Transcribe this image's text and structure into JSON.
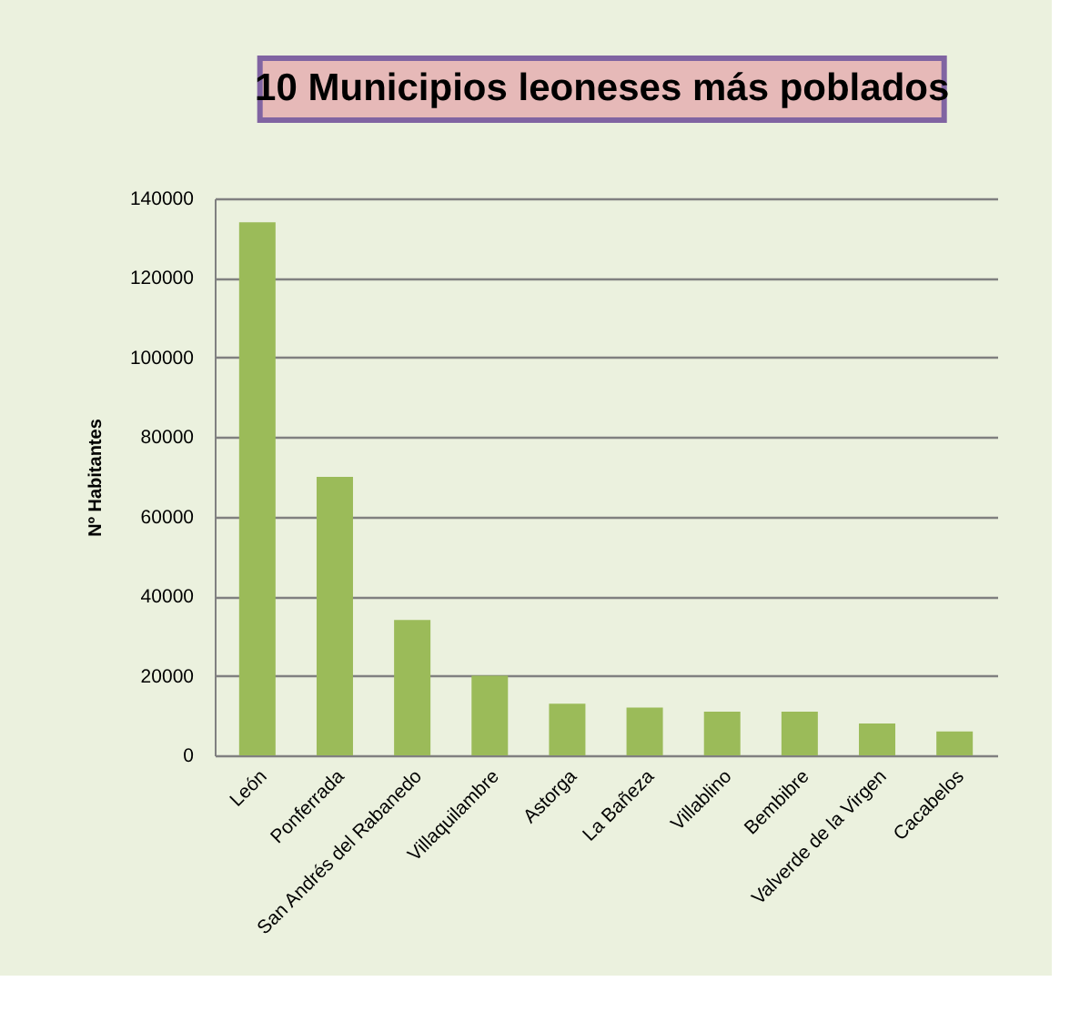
{
  "chart_data": {
    "type": "bar",
    "title": "10 Municipios leoneses más poblados",
    "ylabel": "Nº Habitantes",
    "categories": [
      "León",
      "Ponferrada",
      "San Andrés del Rabanedo",
      "Villaquilambre",
      "Astorga",
      "La Bañeza",
      "Villablino",
      "Bembibre",
      "Valverde de la Virgen",
      "Cacabelos"
    ],
    "values": [
      134000,
      70000,
      34000,
      20000,
      13000,
      12000,
      11000,
      11000,
      8000,
      6000
    ],
    "color": "#9bbb59",
    "ylim": [
      0,
      140000
    ],
    "yticks": [
      0,
      20000,
      40000,
      60000,
      80000,
      100000,
      120000,
      140000
    ],
    "grid": "y"
  }
}
